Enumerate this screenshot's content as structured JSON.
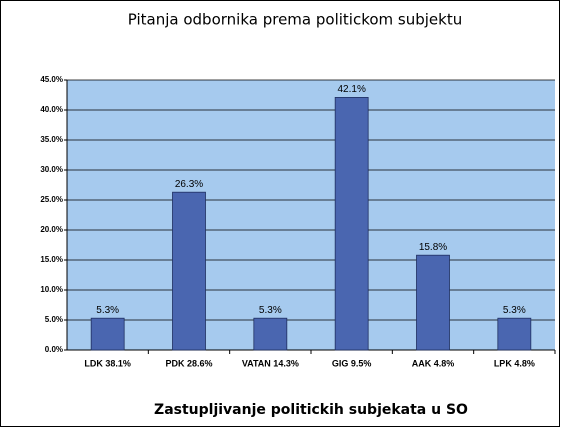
{
  "chart_data": {
    "type": "bar",
    "title": "Pitanja odbornika prema politickom subjektu",
    "x_label": "Zastupljivanje politickih subjekata u SO",
    "categories": [
      "LDK 38.1%",
      "PDK 28.6%",
      "VATAN 14.3%",
      "GIG 9.5%",
      "AAK 4.8%",
      "LPK 4.8%"
    ],
    "values": [
      5.3,
      26.3,
      5.3,
      42.1,
      15.8,
      5.3
    ],
    "value_labels": [
      "5.3%",
      "26.3%",
      "5.3%",
      "42.1%",
      "15.8%",
      "5.3%"
    ],
    "color": "#4a66b0",
    "ylim": [
      0,
      45
    ],
    "yticks": [
      {
        "value": 0,
        "label": "0.0%"
      },
      {
        "value": 5,
        "label": "5.0%"
      },
      {
        "value": 10,
        "label": "10.0%"
      },
      {
        "value": 15,
        "label": "15.0%"
      },
      {
        "value": 20,
        "label": "20.0%"
      },
      {
        "value": 25,
        "label": "25.0%"
      },
      {
        "value": 30,
        "label": "30.0%"
      },
      {
        "value": 35,
        "label": "35.0%"
      },
      {
        "value": 40,
        "label": "40.0%"
      },
      {
        "value": 45,
        "label": "45.0%"
      }
    ],
    "grid": true
  }
}
